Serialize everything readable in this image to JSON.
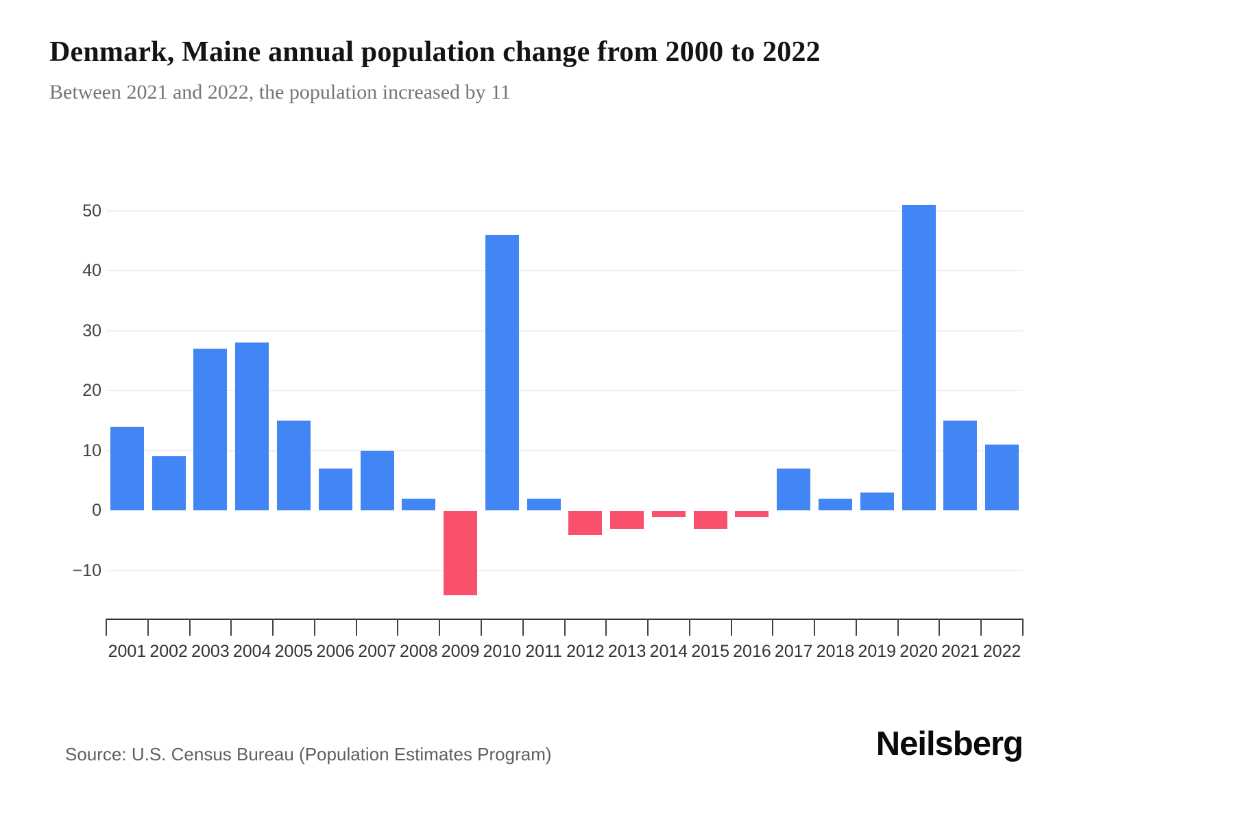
{
  "header": {
    "title": "Denmark, Maine annual population change from 2000 to 2022",
    "subtitle": "Between 2021 and 2022, the population increased by 11"
  },
  "chart_data": {
    "type": "bar",
    "title": "Denmark, Maine annual population change from 2000 to 2022",
    "subtitle": "Between 2021 and 2022, the population increased by 11",
    "categories": [
      "2001",
      "2002",
      "2003",
      "2004",
      "2005",
      "2006",
      "2007",
      "2008",
      "2009",
      "2010",
      "2011",
      "2012",
      "2013",
      "2014",
      "2015",
      "2016",
      "2017",
      "2018",
      "2019",
      "2020",
      "2021",
      "2022"
    ],
    "values": [
      14,
      9,
      27,
      28,
      15,
      7,
      10,
      2,
      -14,
      46,
      2,
      -4,
      -3,
      -1,
      -3,
      -1,
      7,
      2,
      3,
      51,
      15,
      11
    ],
    "xlabel": "",
    "ylabel": "",
    "ylim": [
      -18,
      53
    ],
    "yticks": [
      {
        "label": "50",
        "value": 50,
        "grid": true
      },
      {
        "label": "40",
        "value": 40,
        "grid": true
      },
      {
        "label": "30",
        "value": 30,
        "grid": true
      },
      {
        "label": "20",
        "value": 20,
        "grid": true
      },
      {
        "label": "10",
        "value": 10,
        "grid": true
      },
      {
        "label": "0",
        "value": 0,
        "grid": false
      },
      {
        "label": "−10",
        "value": -10,
        "grid": true
      }
    ],
    "grid": "horizontal-light",
    "legend": "none",
    "positive_color": "#4285F4",
    "negative_color": "#F9516B"
  },
  "footer": {
    "source": "Source: U.S. Census Bureau (Population Estimates Program)",
    "brand": "Neilsberg"
  }
}
